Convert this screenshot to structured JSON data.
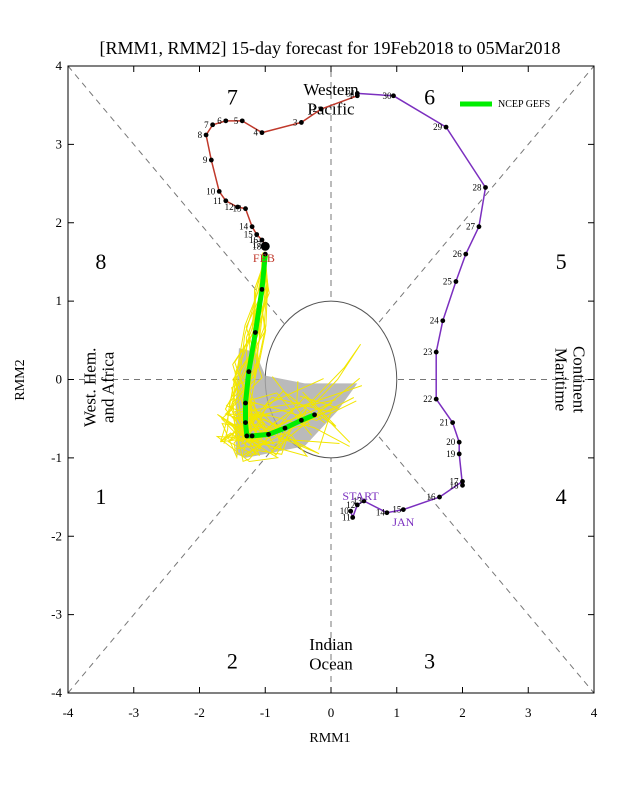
{
  "chart_data": {
    "type": "line",
    "title": "[RMM1, RMM2] 15-day forecast for 19Feb2018 to 05Mar2018",
    "xlabel": "RMM1",
    "ylabel": "RMM2",
    "xlim": [
      -4,
      4
    ],
    "ylim": [
      -4,
      4
    ],
    "ticks": [
      -4,
      -3,
      -2,
      -1,
      0,
      1,
      2,
      3,
      4
    ],
    "grid": false,
    "legend": {
      "position": "top-right",
      "entries": [
        {
          "name": "NCEP GEFS",
          "color": "#00ee00"
        }
      ]
    },
    "phase_labels": [
      {
        "text": "1",
        "x": -3.5,
        "y": -1.5
      },
      {
        "text": "2",
        "x": -1.5,
        "y": -3.6
      },
      {
        "text": "3",
        "x": 1.5,
        "y": -3.6
      },
      {
        "text": "4",
        "x": 3.5,
        "y": -1.5
      },
      {
        "text": "5",
        "x": 3.5,
        "y": 1.5
      },
      {
        "text": "6",
        "x": 1.5,
        "y": 3.6
      },
      {
        "text": "7",
        "x": -1.5,
        "y": 3.6
      },
      {
        "text": "8",
        "x": -3.5,
        "y": 1.5
      }
    ],
    "region_labels": {
      "western_pacific": [
        "Western",
        "Pacific"
      ],
      "indian_ocean": [
        "Indian",
        "Ocean"
      ],
      "maritime_continent": [
        "Maritime",
        "Continent"
      ],
      "west_hem_africa": [
        "West. Hem.",
        "and Africa"
      ]
    },
    "month_labels": [
      {
        "text": "START",
        "x": 0.45,
        "y": -1.54,
        "color": "#7b2fbf"
      },
      {
        "text": "JAN",
        "x": 1.1,
        "y": -1.87,
        "color": "#7b2fbf"
      },
      {
        "text": "FEB",
        "x": -1.02,
        "y": 1.5,
        "color": "#c0392b"
      }
    ],
    "series": [
      {
        "name": "January",
        "color": "#7b2fbf",
        "labels": [
          "10",
          "11",
          "12",
          "13",
          "14",
          "15",
          "16",
          "17",
          "18",
          "19",
          "20",
          "21",
          "22",
          "23",
          "24",
          "25",
          "26",
          "27",
          "28",
          "29",
          "30",
          "31"
        ],
        "x": [
          0.3,
          0.33,
          0.4,
          0.5,
          0.85,
          1.1,
          1.65,
          2.0,
          2.0,
          1.95,
          1.95,
          1.85,
          1.6,
          1.6,
          1.7,
          1.9,
          2.05,
          2.25,
          2.35,
          1.75,
          0.95,
          0.4
        ],
        "y": [
          -1.68,
          -1.76,
          -1.6,
          -1.55,
          -1.7,
          -1.66,
          -1.5,
          -1.3,
          -1.35,
          -0.95,
          -0.8,
          -0.55,
          -0.25,
          0.35,
          0.75,
          1.25,
          1.6,
          1.95,
          2.45,
          3.22,
          3.62,
          3.65
        ]
      },
      {
        "name": "February",
        "color": "#c0392b",
        "labels": [
          "1",
          "2",
          "3",
          "4",
          "5",
          "6",
          "7",
          "8",
          "9",
          "10",
          "11",
          "12",
          "13",
          "14",
          "15",
          "16",
          "17",
          "18"
        ],
        "x": [
          0.4,
          -0.15,
          -0.45,
          -1.05,
          -1.35,
          -1.6,
          -1.8,
          -1.9,
          -1.82,
          -1.7,
          -1.6,
          -1.42,
          -1.3,
          -1.2,
          -1.13,
          -1.05,
          -1.0,
          -1.0
        ],
        "y": [
          3.62,
          3.45,
          3.28,
          3.15,
          3.3,
          3.3,
          3.25,
          3.12,
          2.8,
          2.4,
          2.28,
          2.2,
          2.18,
          1.95,
          1.85,
          1.78,
          1.72,
          1.7
        ]
      },
      {
        "name": "NCEP GEFS",
        "color": "#00ee00",
        "x": [
          -1.0,
          -1.05,
          -1.15,
          -1.25,
          -1.3,
          -1.3,
          -1.28,
          -1.2,
          -0.95,
          -0.7,
          -0.45,
          -0.25
        ],
        "y": [
          1.6,
          1.15,
          0.6,
          0.1,
          -0.3,
          -0.55,
          -0.72,
          -0.72,
          -0.7,
          -0.62,
          -0.52,
          -0.45
        ]
      }
    ],
    "ensemble_note_lines": 20
  }
}
